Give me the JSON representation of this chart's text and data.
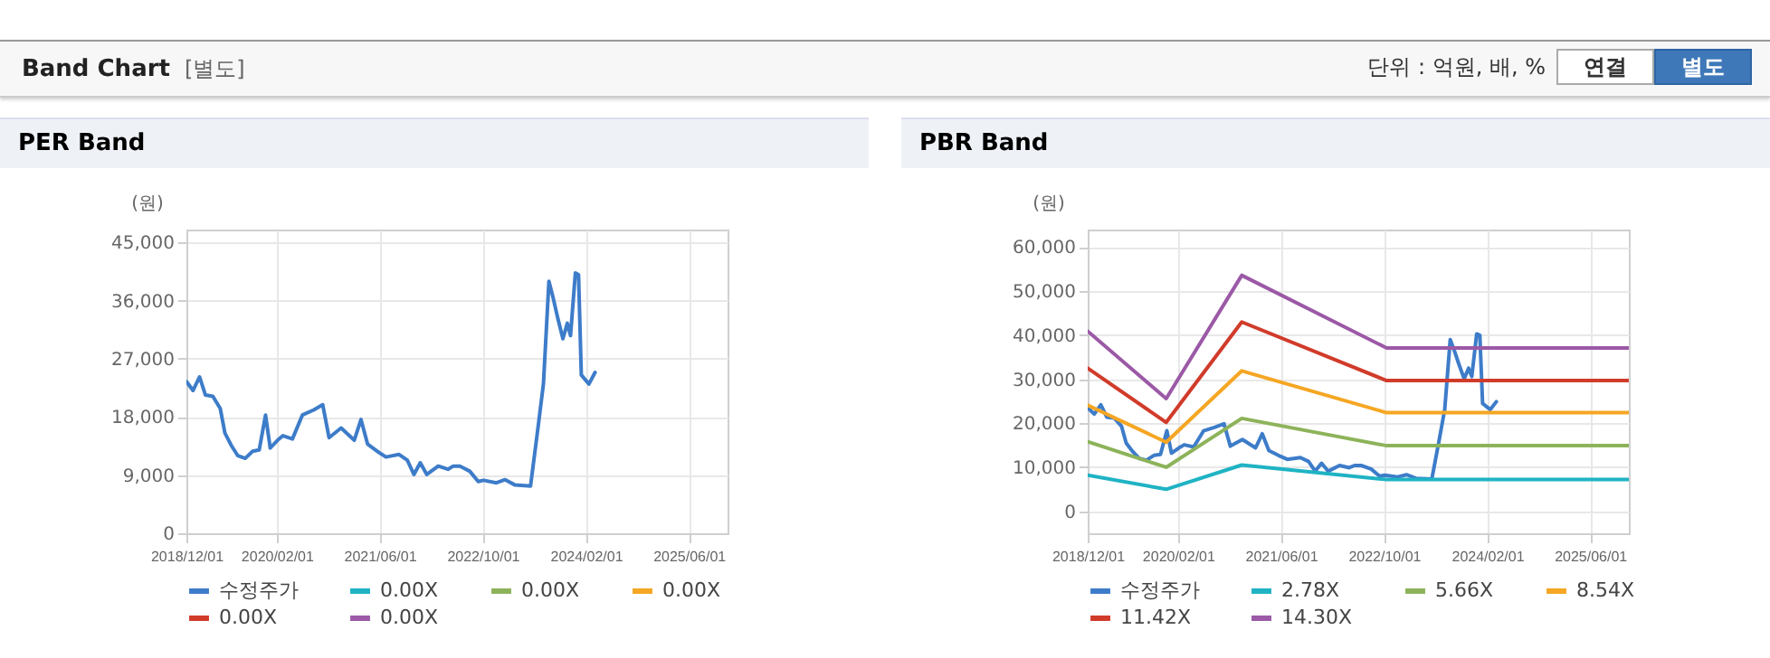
{
  "chart_data": [
    {
      "type": "other",
      "title": "Band Chart",
      "annotations": [
        "[별도]",
        "단위 : 억원, 배, %",
        "연결",
        "별도"
      ]
    },
    {
      "type": "line",
      "title": "PER Band",
      "ylabel": "(원)",
      "legend": "bottom",
      "grid": true,
      "xlim": [
        "2018-12-01",
        "2025-12-01"
      ],
      "xticks": [
        {
          "value": "2018-12-01",
          "label": "2018/12/01"
        },
        {
          "value": "2020-02-01",
          "label": "2020/02/01"
        },
        {
          "value": "2021-06-01",
          "label": "2021/06/01"
        },
        {
          "value": "2022-10-01",
          "label": "2022/10/01"
        },
        {
          "value": "2024-02-01",
          "label": "2024/02/01"
        },
        {
          "value": "2025-06-01",
          "label": "2025/06/01"
        }
      ],
      "ylim": [
        0,
        47000
      ],
      "yticks": [
        0,
        {
          "value": 9000,
          "label": "9,000"
        },
        {
          "value": 18000,
          "label": "18,000"
        },
        {
          "value": 27000,
          "label": "27,000"
        },
        {
          "value": 36000,
          "label": "36,000"
        },
        {
          "value": 45000,
          "label": "45,000"
        }
      ],
      "series": [
        {
          "name": "수정주가",
          "color": "#3d7cc9",
          "x": [
            "2018-12-01",
            "2019-01-01",
            "2019-02-01",
            "2019-03-01",
            "2019-04-05",
            "2019-05-10",
            "2019-06-01",
            "2019-07-01",
            "2019-08-01",
            "2019-09-05",
            "2019-10-10",
            "2019-11-10",
            "2019-12-10",
            "2020-01-01",
            "2020-02-05",
            "2020-03-01",
            "2020-04-15",
            "2020-06-01",
            "2020-07-25",
            "2020-09-05",
            "2020-10-05",
            "2020-12-01",
            "2021-02-01",
            "2021-03-05",
            "2021-04-05",
            "2021-05-20",
            "2021-07-01",
            "2021-09-01",
            "2021-10-10",
            "2021-11-10",
            "2021-12-10",
            "2022-01-10",
            "2022-03-05",
            "2022-04-20",
            "2022-05-15",
            "2022-06-15",
            "2022-08-01",
            "2022-09-10",
            "2022-10-05",
            "2022-12-05",
            "2023-01-15",
            "2023-03-01",
            "2023-05-15",
            "2023-06-20",
            "2023-07-15",
            "2023-08-10",
            "2023-08-28",
            "2023-09-20",
            "2023-10-15",
            "2023-11-05",
            "2023-11-20",
            "2023-12-13",
            "2023-12-28",
            "2024-01-10",
            "2024-02-15",
            "2024-03-15"
          ],
          "values": [
            23500,
            22100,
            24200,
            21400,
            21200,
            19300,
            15500,
            13600,
            12000,
            11600,
            12700,
            12900,
            18300,
            13200,
            14400,
            15100,
            14600,
            18300,
            19100,
            19900,
            14800,
            16300,
            14400,
            17600,
            13800,
            12700,
            11800,
            12200,
            11300,
            9100,
            10900,
            9100,
            10400,
            9900,
            10400,
            10400,
            9600,
            8000,
            8200,
            7800,
            8300,
            7500,
            7300,
            16500,
            23100,
            39000,
            36700,
            33400,
            30100,
            32500,
            30600,
            40300,
            40000,
            24500,
            23100,
            24900
          ]
        },
        {
          "name": "0.00X",
          "color": "#1fb3c4"
        },
        {
          "name": "0.00X",
          "color": "#8db35a"
        },
        {
          "name": "0.00X",
          "color": "#f5a623"
        },
        {
          "name": "0.00X",
          "color": "#d13b2a"
        },
        {
          "name": "0.00X",
          "color": "#9b59a6"
        }
      ]
    },
    {
      "type": "line",
      "title": "PBR Band",
      "ylabel": "(원)",
      "legend": "bottom",
      "grid": true,
      "xlim": [
        "2018-12-01",
        "2025-12-01"
      ],
      "xticks": [
        {
          "value": "2018-12-01",
          "label": "2018/12/01"
        },
        {
          "value": "2020-02-01",
          "label": "2020/02/01"
        },
        {
          "value": "2021-06-01",
          "label": "2021/06/01"
        },
        {
          "value": "2022-10-01",
          "label": "2022/10/01"
        },
        {
          "value": "2024-02-01",
          "label": "2024/02/01"
        },
        {
          "value": "2025-06-01",
          "label": "2025/06/01"
        }
      ],
      "ylim": [
        -5000,
        64000
      ],
      "yticks": [
        0,
        {
          "value": 10000,
          "label": "10,000"
        },
        {
          "value": 20000,
          "label": "20,000"
        },
        {
          "value": 30000,
          "label": "30,000"
        },
        {
          "value": 40000,
          "label": "40,000"
        },
        {
          "value": 50000,
          "label": "50,000"
        },
        {
          "value": 60000,
          "label": "60,000"
        }
      ],
      "series": [
        {
          "name": "수정주가",
          "color": "#3d7cc9",
          "x": [
            "2018-12-01",
            "2019-01-01",
            "2019-02-01",
            "2019-03-01",
            "2019-04-05",
            "2019-05-10",
            "2019-06-01",
            "2019-07-01",
            "2019-08-01",
            "2019-09-05",
            "2019-10-10",
            "2019-11-10",
            "2019-12-10",
            "2020-01-01",
            "2020-02-05",
            "2020-03-01",
            "2020-04-15",
            "2020-06-01",
            "2020-07-25",
            "2020-09-05",
            "2020-10-05",
            "2020-12-01",
            "2021-02-01",
            "2021-03-05",
            "2021-04-05",
            "2021-05-20",
            "2021-07-01",
            "2021-09-01",
            "2021-10-10",
            "2021-11-10",
            "2021-12-10",
            "2022-01-10",
            "2022-03-05",
            "2022-04-20",
            "2022-05-15",
            "2022-06-15",
            "2022-08-01",
            "2022-09-10",
            "2022-10-05",
            "2022-12-05",
            "2023-01-15",
            "2023-03-01",
            "2023-05-15",
            "2023-06-20",
            "2023-07-15",
            "2023-08-10",
            "2023-08-28",
            "2023-09-20",
            "2023-10-15",
            "2023-11-05",
            "2023-11-20",
            "2023-12-13",
            "2023-12-28",
            "2024-01-10",
            "2024-02-15",
            "2024-03-15"
          ],
          "values": [
            23500,
            22100,
            24200,
            21400,
            21200,
            19300,
            15500,
            13600,
            12000,
            11600,
            12700,
            12900,
            18300,
            13200,
            14400,
            15100,
            14600,
            18300,
            19100,
            19900,
            14800,
            16300,
            14400,
            17600,
            13800,
            12700,
            11800,
            12200,
            11300,
            9100,
            10900,
            9100,
            10400,
            9900,
            10400,
            10400,
            9600,
            8000,
            8200,
            7800,
            8300,
            7500,
            7300,
            16500,
            23100,
            39000,
            36700,
            33400,
            30100,
            32500,
            30600,
            40300,
            40000,
            24500,
            23100,
            24900
          ]
        },
        {
          "name": "2.78X",
          "color": "#1fb3c4",
          "x": [
            "2018-12-01",
            "2019-12-07",
            "2020-11-28",
            "2022-10-13",
            "2025-12-01"
          ],
          "values": [
            8200,
            5000,
            10500,
            7200,
            7200
          ]
        },
        {
          "name": "5.66X",
          "color": "#8db35a",
          "x": [
            "2018-12-01",
            "2019-12-07",
            "2020-11-28",
            "2022-10-13",
            "2025-12-01"
          ],
          "values": [
            15800,
            10000,
            21100,
            14900,
            14900
          ]
        },
        {
          "name": "8.54X",
          "color": "#f5a623",
          "x": [
            "2018-12-01",
            "2019-12-07",
            "2020-11-28",
            "2022-10-13",
            "2025-12-01"
          ],
          "values": [
            24100,
            15700,
            31900,
            22400,
            22400
          ]
        },
        {
          "name": "11.42X",
          "color": "#d13b2a",
          "x": [
            "2018-12-01",
            "2019-12-07",
            "2020-11-28",
            "2022-10-13",
            "2025-12-01"
          ],
          "values": [
            32500,
            20200,
            43000,
            29700,
            29700
          ]
        },
        {
          "name": "14.30X",
          "color": "#9b59a6",
          "x": [
            "2018-12-01",
            "2019-12-07",
            "2020-11-28",
            "2022-10-13",
            "2025-12-01"
          ],
          "values": [
            40900,
            25600,
            53600,
            37100,
            37100
          ]
        }
      ]
    }
  ]
}
